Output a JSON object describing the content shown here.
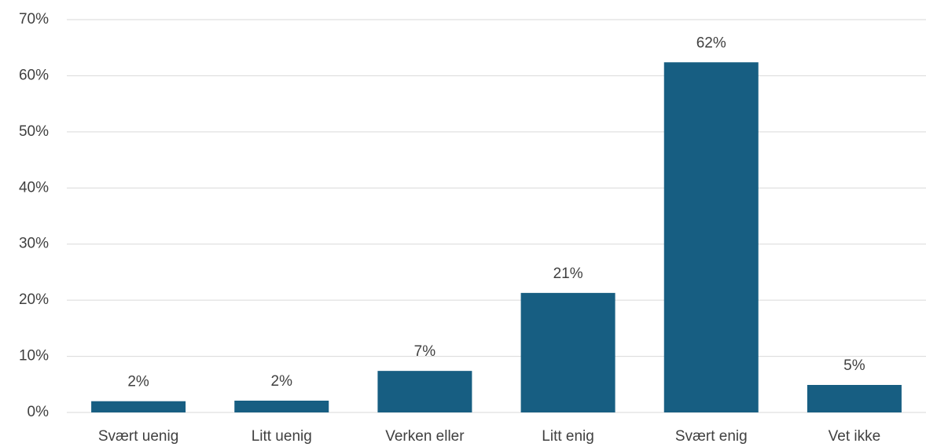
{
  "chart_data": {
    "type": "bar",
    "categories": [
      "Svært uenig",
      "Litt uenig",
      "Verken eller",
      "Litt enig",
      "Svært enig",
      "Vet ikke"
    ],
    "values": [
      2,
      2.1,
      7.4,
      21.3,
      62.4,
      4.9
    ],
    "value_labels": [
      "2%",
      "2%",
      "7%",
      "21%",
      "62%",
      "5%"
    ],
    "color": "#175e82",
    "ylim": [
      0,
      70
    ],
    "yticks": [
      {
        "value": 0,
        "label": "0%"
      },
      {
        "value": 10,
        "label": "10%"
      },
      {
        "value": 20,
        "label": "20%"
      },
      {
        "value": 30,
        "label": "30%"
      },
      {
        "value": 40,
        "label": "40%"
      },
      {
        "value": 50,
        "label": "50%"
      },
      {
        "value": 60,
        "label": "60%"
      },
      {
        "value": 70,
        "label": "70%"
      }
    ],
    "grid": true
  }
}
